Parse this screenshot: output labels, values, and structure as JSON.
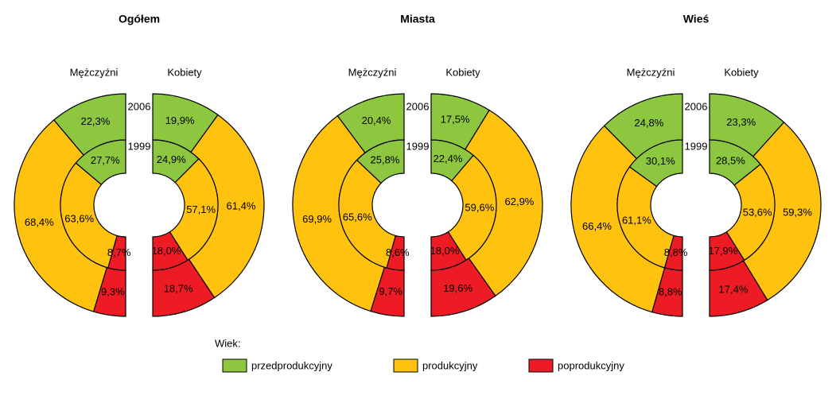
{
  "chart_data": [
    {
      "type": "split-donut",
      "title": "Ogółem",
      "rings": [
        "2006",
        "1999"
      ],
      "series": [
        {
          "name": "Mężczyźni",
          "values": [
            [
              22.3,
              68.4,
              9.3
            ],
            [
              27.7,
              63.6,
              8.7
            ]
          ],
          "value_labels": [
            [
              "22,3%",
              "68,4%",
              "9,3%"
            ],
            [
              "27,7%",
              "63,6%",
              "8,7%"
            ]
          ]
        },
        {
          "name": "Kobiety",
          "values": [
            [
              19.9,
              61.4,
              18.7
            ],
            [
              24.9,
              57.1,
              18.0
            ]
          ],
          "value_labels": [
            [
              "19,9%",
              "61,4%",
              "18,7%"
            ],
            [
              "24,9%",
              "57,1%",
              "18,0%"
            ]
          ]
        }
      ]
    },
    {
      "type": "split-donut",
      "title": "Miasta",
      "rings": [
        "2006",
        "1999"
      ],
      "series": [
        {
          "name": "Mężczyźni",
          "values": [
            [
              20.4,
              69.9,
              9.7
            ],
            [
              25.8,
              65.6,
              8.6
            ]
          ],
          "value_labels": [
            [
              "20,4%",
              "69,9%",
              "9,7%"
            ],
            [
              "25,8%",
              "65,6%",
              "8,6%"
            ]
          ]
        },
        {
          "name": "Kobiety",
          "values": [
            [
              17.5,
              62.9,
              19.6
            ],
            [
              22.4,
              59.6,
              18.0
            ]
          ],
          "value_labels": [
            [
              "17,5%",
              "62,9%",
              "19,6%"
            ],
            [
              "22,4%",
              "59,6%",
              "18,0%"
            ]
          ]
        }
      ]
    },
    {
      "type": "split-donut",
      "title": "Wieś",
      "rings": [
        "2006",
        "1999"
      ],
      "series": [
        {
          "name": "Mężczyźni",
          "values": [
            [
              24.8,
              66.4,
              8.8
            ],
            [
              30.1,
              61.1,
              8.8
            ]
          ],
          "value_labels": [
            [
              "24,8%",
              "66,4%",
              "8,8%"
            ],
            [
              "30,1%",
              "61,1%",
              "8,8%"
            ]
          ]
        },
        {
          "name": "Kobiety",
          "values": [
            [
              23.3,
              59.3,
              17.4
            ],
            [
              28.5,
              53.6,
              17.9
            ]
          ],
          "value_labels": [
            [
              "23,3%",
              "59,3%",
              "17,4%"
            ],
            [
              "28,5%",
              "53,6%",
              "17,9%"
            ]
          ]
        }
      ]
    }
  ],
  "legend": {
    "title": "Wiek:",
    "items": [
      {
        "name": "przedprodukcyjny",
        "color": "#8dc63f"
      },
      {
        "name": "produkcyjny",
        "color": "#ffc20e"
      },
      {
        "name": "poprodukcyjny",
        "color": "#ed1c24"
      }
    ]
  }
}
